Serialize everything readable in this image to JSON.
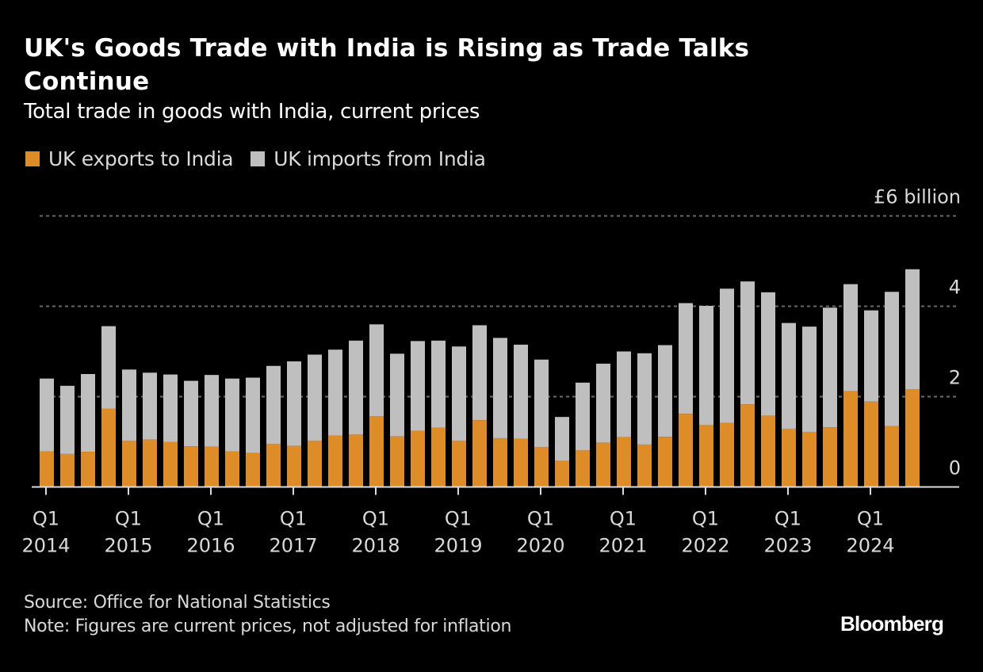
{
  "header": {
    "title": "UK's Goods Trade with India is Rising as Trade Talks Continue",
    "subtitle": "Total trade in goods with India, current prices"
  },
  "legend": [
    {
      "label": "UK exports to India",
      "color": "#DE8C27"
    },
    {
      "label": "UK imports from India",
      "color": "#BFBFBF"
    }
  ],
  "footer": {
    "source": "Source: Office for National Statistics",
    "note": "Note: Figures are current prices, not adjusted for inflation",
    "brand": "Bloomberg"
  },
  "chart_data": {
    "type": "bar",
    "stacked": true,
    "title": "UK's Goods Trade with India is Rising as Trade Talks Continue",
    "subtitle": "Total trade in goods with India, current prices",
    "xlabel": "",
    "ylabel": "",
    "y_unit_label": "£6 billion",
    "ylim": [
      0,
      6
    ],
    "yticks": [
      0,
      2,
      4,
      6
    ],
    "ytick_labels": [
      "0",
      "2",
      "4",
      "£6 billion"
    ],
    "grid": true,
    "legend_position": "top-left",
    "x_tick_labels": [
      {
        "index": 0,
        "q": "Q1",
        "year": "2014"
      },
      {
        "index": 4,
        "q": "Q1",
        "year": "2015"
      },
      {
        "index": 8,
        "q": "Q1",
        "year": "2016"
      },
      {
        "index": 12,
        "q": "Q1",
        "year": "2017"
      },
      {
        "index": 16,
        "q": "Q1",
        "year": "2018"
      },
      {
        "index": 20,
        "q": "Q1",
        "year": "2019"
      },
      {
        "index": 24,
        "q": "Q1",
        "year": "2020"
      },
      {
        "index": 28,
        "q": "Q1",
        "year": "2021"
      },
      {
        "index": 32,
        "q": "Q1",
        "year": "2022"
      },
      {
        "index": 36,
        "q": "Q1",
        "year": "2023"
      },
      {
        "index": 40,
        "q": "Q1",
        "year": "2024"
      }
    ],
    "categories": [
      "Q1 2014",
      "Q2 2014",
      "Q3 2014",
      "Q4 2014",
      "Q1 2015",
      "Q2 2015",
      "Q3 2015",
      "Q4 2015",
      "Q1 2016",
      "Q2 2016",
      "Q3 2016",
      "Q4 2016",
      "Q1 2017",
      "Q2 2017",
      "Q3 2017",
      "Q4 2017",
      "Q1 2018",
      "Q2 2018",
      "Q3 2018",
      "Q4 2018",
      "Q1 2019",
      "Q2 2019",
      "Q3 2019",
      "Q4 2019",
      "Q1 2020",
      "Q2 2020",
      "Q3 2020",
      "Q4 2020",
      "Q1 2021",
      "Q2 2021",
      "Q3 2021",
      "Q4 2021",
      "Q1 2022",
      "Q2 2022",
      "Q3 2022",
      "Q4 2022",
      "Q1 2023",
      "Q2 2023",
      "Q3 2023",
      "Q4 2023",
      "Q1 2024",
      "Q2 2024",
      "Q3 2024"
    ],
    "series": [
      {
        "name": "UK exports to India",
        "color": "#DE8C27",
        "values": [
          0.79,
          0.73,
          0.78,
          1.73,
          1.02,
          1.05,
          1.0,
          0.9,
          0.89,
          0.79,
          0.75,
          0.95,
          0.91,
          1.02,
          1.14,
          1.16,
          1.57,
          1.12,
          1.24,
          1.31,
          1.02,
          1.48,
          1.08,
          1.07,
          0.88,
          0.58,
          0.81,
          0.98,
          1.1,
          0.94,
          1.11,
          1.62,
          1.37,
          1.42,
          1.83,
          1.58,
          1.29,
          1.22,
          1.32,
          2.12,
          1.89,
          1.35,
          2.16
        ]
      },
      {
        "name": "UK imports from India",
        "color": "#BFBFBF",
        "values": [
          1.61,
          1.51,
          1.72,
          1.83,
          1.58,
          1.48,
          1.49,
          1.45,
          1.59,
          1.61,
          1.67,
          1.73,
          1.87,
          1.91,
          1.9,
          2.08,
          2.03,
          1.83,
          1.99,
          1.93,
          2.09,
          2.1,
          2.22,
          2.08,
          1.94,
          0.97,
          1.5,
          1.75,
          1.9,
          2.02,
          2.03,
          2.45,
          2.64,
          2.97,
          2.72,
          2.73,
          2.34,
          2.33,
          2.65,
          2.37,
          2.02,
          2.97,
          2.66
        ]
      }
    ]
  }
}
